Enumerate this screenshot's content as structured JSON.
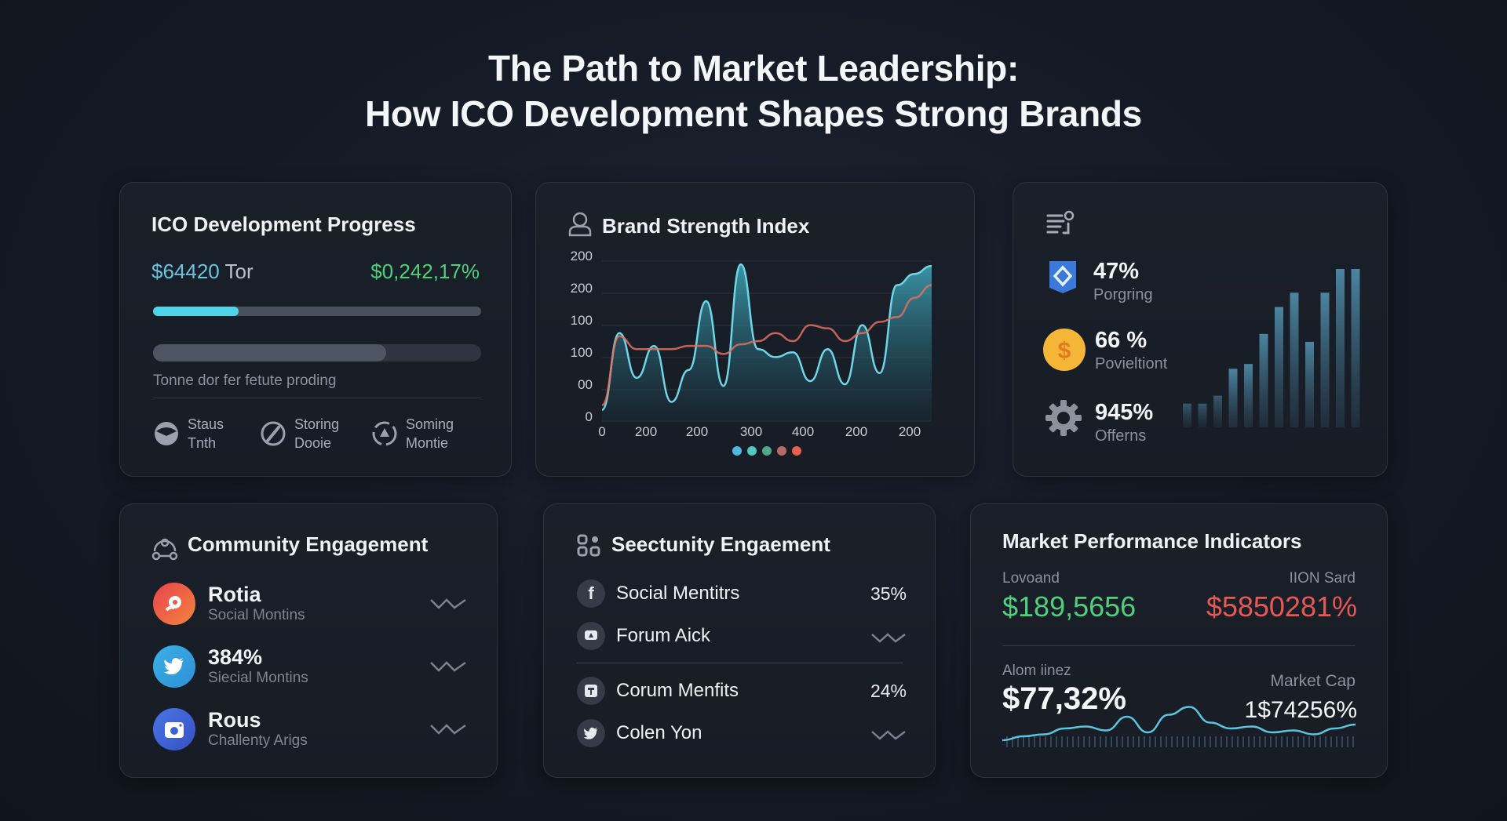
{
  "page": {
    "title_line1": "The Path to Market Leadership:",
    "title_line2": "How ICO Development Shapes Strong Brands"
  },
  "ico_progress": {
    "title": "ICO Development Progress",
    "raised_value": "$64420",
    "raised_unit": "Tor",
    "percent_value": "$0,242,17%",
    "progress_primary_pct": 26,
    "progress_secondary_pct": 71,
    "note": "Tonne dor fer fetute proding",
    "stages": [
      {
        "line1": "Staus",
        "line2": "Tnth",
        "icon": "status-icon"
      },
      {
        "line1": "Storing",
        "line2": "Dooie",
        "icon": "gauge-icon"
      },
      {
        "line1": "Soming",
        "line2": "Montie",
        "icon": "triangle-circle-icon"
      }
    ]
  },
  "brand_strength": {
    "title": "Brand Strength Index",
    "y_ticks": [
      "200",
      "200",
      "100",
      "100",
      "00",
      "0"
    ],
    "x_ticks": [
      "0",
      "200",
      "200",
      "300",
      "400",
      "200",
      "200"
    ],
    "legend_colors": [
      "#4fb8de",
      "#4fc8c0",
      "#4fa888",
      "#b86a6a",
      "#e8604e"
    ]
  },
  "kpis": {
    "items": [
      {
        "value": "47%",
        "label": "Porgring",
        "icon": "shield-icon"
      },
      {
        "value": "66 %",
        "label": "Povieltiont",
        "icon": "dollar-coin-icon"
      },
      {
        "value": "945%",
        "label": "Offerns",
        "icon": "gear-icon"
      }
    ]
  },
  "community": {
    "title": "Community Engagement",
    "items": [
      {
        "main": "Rotia",
        "sub": "Social Montins",
        "color": "#e8504a"
      },
      {
        "main": "384%",
        "sub": "Siecial Montins",
        "color": "#3aa6e0"
      },
      {
        "main": "Rous",
        "sub": "Challenty Arigs",
        "color": "#3f66d8"
      }
    ]
  },
  "security": {
    "title": "Seectunity Engaement",
    "items": [
      {
        "label": "Social Mentitrs",
        "pct": "35%",
        "icon": "facebook-icon"
      },
      {
        "label": "Forum Aick",
        "pct": "",
        "icon": "chat-icon"
      },
      {
        "label": "Corum Menfits",
        "pct": "24%",
        "icon": "forum-icon"
      },
      {
        "label": "Colen Yon",
        "pct": "",
        "icon": "twitter-icon"
      }
    ]
  },
  "market": {
    "title": "Market Performance Indicators",
    "left_label": "Lovoand",
    "left_value": "$189,5656",
    "right_label": "IION Sard",
    "right_value": "$5850281%",
    "bottom_left_label": "Alom iinez",
    "bottom_left_value": "$77,32%",
    "bottom_right_label": "Market Cap",
    "bottom_right_value": "1$74256%"
  },
  "chart_data": [
    {
      "type": "area",
      "title": "Brand Strength Index",
      "xlabel": "",
      "ylabel": "",
      "x_tick_labels": [
        "0",
        "200",
        "200",
        "300",
        "400",
        "200",
        "200"
      ],
      "y_tick_labels": [
        "0",
        "00",
        "100",
        "100",
        "200",
        "200"
      ],
      "grid": true,
      "series": [
        {
          "name": "Cyan area",
          "values": [
            7,
            55,
            27,
            47,
            12,
            32,
            75,
            22,
            98,
            45,
            40,
            43,
            25,
            45,
            23,
            60,
            30,
            85,
            92,
            97
          ]
        },
        {
          "name": "Orange line",
          "values": [
            10,
            53,
            45,
            45,
            45,
            47,
            47,
            42,
            48,
            50,
            55,
            50,
            60,
            58,
            50,
            55,
            62,
            65,
            77,
            85
          ]
        }
      ]
    },
    {
      "type": "bar",
      "title": "KPI trend bars",
      "values": [
        15,
        15,
        20,
        37,
        40,
        59,
        76,
        85,
        54,
        85,
        100,
        100
      ]
    },
    {
      "type": "line",
      "title": "Market sparkline",
      "values": [
        4,
        8,
        10,
        16,
        18,
        14,
        28,
        12,
        30,
        38,
        22,
        16,
        18,
        12,
        14,
        10,
        16,
        20
      ]
    }
  ]
}
